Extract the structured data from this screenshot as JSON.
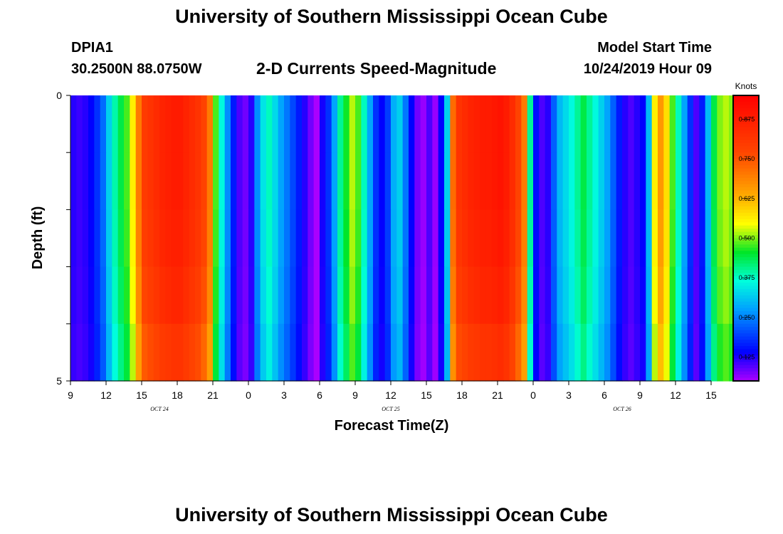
{
  "header": {
    "title": "University of Southern Mississippi Ocean Cube",
    "station_id": "DPIA1",
    "station_coords": "30.2500N 88.0750W",
    "model_start_label": "Model Start Time",
    "model_start_value": "10/24/2019 Hour 09"
  },
  "footer": {
    "title": "University of Southern Mississippi Ocean Cube"
  },
  "chart_data": {
    "type": "heatmap",
    "title": "2-D Currents Speed-Magnitude",
    "xlabel": "Forecast Time(Z)",
    "ylabel": "Depth (ft)",
    "colorbar_label": "Knots",
    "colorbar_ticks": [
      0.125,
      0.25,
      0.375,
      0.5,
      0.625,
      0.75,
      0.875
    ],
    "colorbar_range": [
      0.05,
      0.95
    ],
    "x_range_hours": [
      0,
      54
    ],
    "x_tick_labels": [
      "9",
      "12",
      "15",
      "18",
      "21",
      "0",
      "3",
      "6",
      "9",
      "12",
      "15",
      "18",
      "21",
      "0",
      "3",
      "6",
      "9",
      "12",
      "15"
    ],
    "date_labels": [
      {
        "text": "OCT 24",
        "hour_offset": 7.5
      },
      {
        "text": "OCT 25",
        "hour_offset": 27
      },
      {
        "text": "OCT 26",
        "hour_offset": 46.5
      }
    ],
    "y_range": [
      0,
      5
    ],
    "y_tick_labels": [
      "0",
      "5"
    ],
    "depth_layers": 5,
    "time_step_hours": 0.5,
    "profile": [
      0.12,
      0.11,
      0.12,
      0.14,
      0.18,
      0.23,
      0.32,
      0.39,
      0.44,
      0.48,
      0.56,
      0.7,
      0.8,
      0.82,
      0.84,
      0.86,
      0.87,
      0.88,
      0.88,
      0.86,
      0.84,
      0.82,
      0.78,
      0.7,
      0.48,
      0.36,
      0.26,
      0.16,
      0.1,
      0.08,
      0.12,
      0.26,
      0.34,
      0.38,
      0.33,
      0.28,
      0.24,
      0.2,
      0.16,
      0.12,
      0.08,
      0.05,
      0.13,
      0.18,
      0.28,
      0.4,
      0.46,
      0.52,
      0.48,
      0.38,
      0.28,
      0.18,
      0.14,
      0.19,
      0.29,
      0.32,
      0.24,
      0.14,
      0.08,
      0.06,
      0.1,
      0.06,
      0.14,
      0.32,
      0.72,
      0.82,
      0.84,
      0.86,
      0.87,
      0.88,
      0.88,
      0.89,
      0.9,
      0.88,
      0.84,
      0.78,
      0.7,
      0.4,
      0.15,
      0.1,
      0.12,
      0.22,
      0.3,
      0.33,
      0.36,
      0.4,
      0.44,
      0.4,
      0.36,
      0.32,
      0.28,
      0.22,
      0.16,
      0.12,
      0.1,
      0.12,
      0.14,
      0.3,
      0.56,
      0.66,
      0.58,
      0.48,
      0.38,
      0.28,
      0.18,
      0.1,
      0.16,
      0.3,
      0.44,
      0.5,
      0.52,
      0.5,
      0.42,
      0.32
    ]
  }
}
